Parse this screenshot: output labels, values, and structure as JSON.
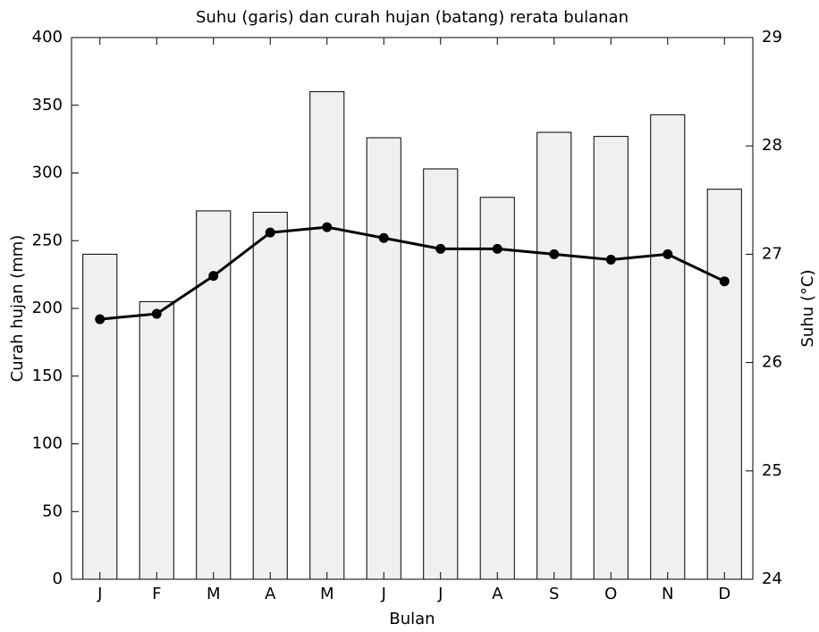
{
  "chart_data": {
    "type": "bar",
    "title": "Suhu (garis) dan curah hujan (batang) rerata bulanan",
    "xlabel": "Bulan",
    "ylabel": "Curah hujan (mm)",
    "y2label": "Suhu (°C)",
    "categories": [
      "J",
      "F",
      "M",
      "A",
      "M",
      "J",
      "J",
      "A",
      "S",
      "O",
      "N",
      "D"
    ],
    "series": [
      {
        "type": "bar",
        "color": "#f0f0f0",
        "values": [
          240,
          205,
          272,
          271,
          360,
          326,
          303,
          282,
          330,
          327,
          343,
          288
        ]
      },
      {
        "type": "line",
        "color": "#000000",
        "axis": "y2",
        "values": [
          26.4,
          26.45,
          26.8,
          27.2,
          27.25,
          27.15,
          27.05,
          27.05,
          27.0,
          26.95,
          27.0,
          26.75
        ]
      }
    ],
    "ylim": [
      0,
      400
    ],
    "yticks": [
      0,
      50,
      100,
      150,
      200,
      250,
      300,
      350,
      400
    ],
    "y2lim": [
      24,
      29
    ],
    "y2ticks": [
      24,
      25,
      26,
      27,
      28,
      29
    ],
    "grid": false
  }
}
